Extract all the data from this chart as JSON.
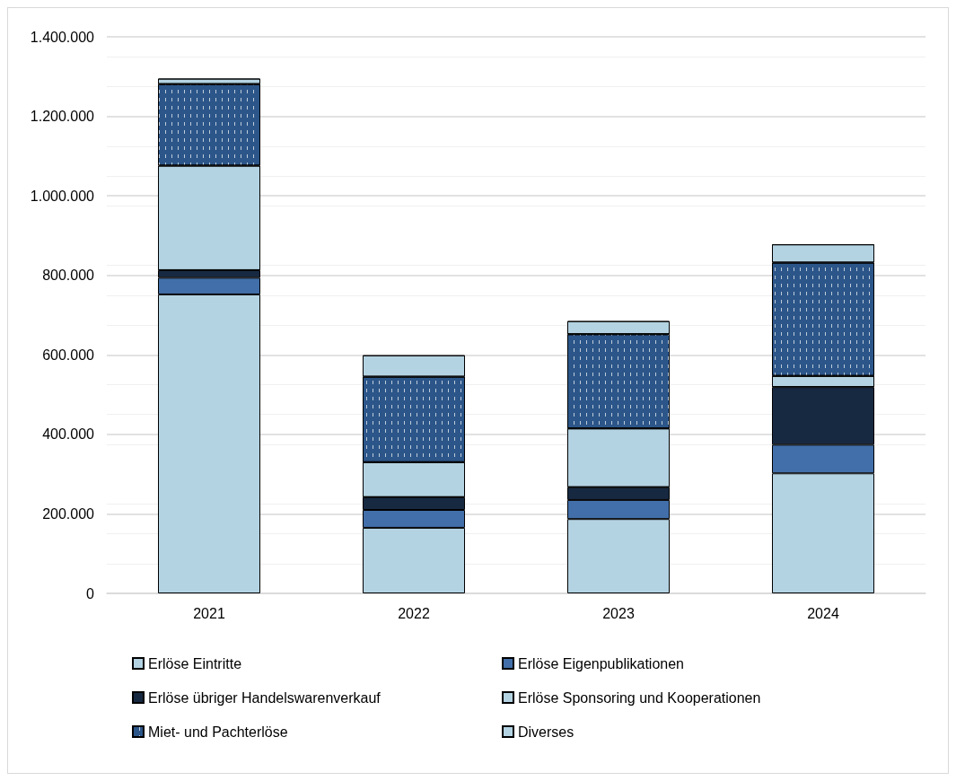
{
  "chart_data": {
    "type": "bar",
    "stacked": true,
    "categories": [
      "2021",
      "2022",
      "2023",
      "2024"
    ],
    "series": [
      {
        "name": "Erlöse Eintritte",
        "color": "#b4d3e2",
        "values": [
          752000,
          165000,
          187000,
          302000
        ]
      },
      {
        "name": "Erlöse Eigenpublikationen",
        "color": "#426fa9",
        "values": [
          42000,
          45000,
          48000,
          72000
        ]
      },
      {
        "name": "Erlöse übriger Handelswarenverkauf",
        "color": "#172941",
        "values": [
          19000,
          32000,
          32000,
          145000
        ]
      },
      {
        "name": "Erlöse Sponsoring und Kooperationen",
        "color": "#b4d3e2",
        "values": [
          263000,
          88000,
          148000,
          28000
        ]
      },
      {
        "name": "Miet- und Pachterlöse",
        "color": "#2c5689",
        "values": [
          205000,
          215000,
          237000,
          285000
        ]
      },
      {
        "name": "Diverses",
        "color": "#b4d3e2",
        "values": [
          14000,
          54000,
          33000,
          46000
        ]
      }
    ],
    "ylim": [
      0,
      1400000
    ],
    "yticks": [
      {
        "value": 0,
        "label": "0"
      },
      {
        "value": 200000,
        "label": "200.000"
      },
      {
        "value": 400000,
        "label": "400.000"
      },
      {
        "value": 600000,
        "label": "600.000"
      },
      {
        "value": 800000,
        "label": "800.000"
      },
      {
        "value": 1000000,
        "label": "1.000.000"
      },
      {
        "value": 1200000,
        "label": "1.200.000"
      },
      {
        "value": 1400000,
        "label": "1.400.000"
      }
    ],
    "grid": true,
    "legend": "bottom"
  }
}
